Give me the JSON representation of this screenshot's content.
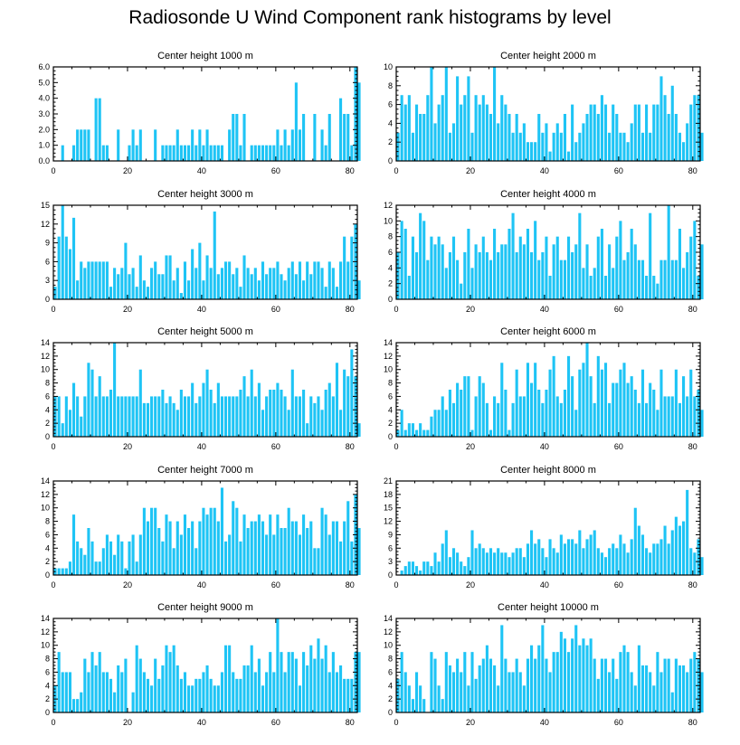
{
  "title": "Radiosonde U Wind Component rank histograms by level",
  "bar_color": "#1ec4f5",
  "chart_data": [
    {
      "type": "bar",
      "title": "Center height 1000 m",
      "xlim": [
        0,
        82
      ],
      "ylim": [
        0,
        6
      ],
      "yticks": [
        "0.0",
        "1.0",
        "2.0",
        "3.0",
        "4.0",
        "5.0",
        "6.0"
      ],
      "xticks": [
        "0",
        "20",
        "40",
        "60",
        "80"
      ],
      "values": [
        0,
        0,
        1,
        0,
        0,
        1,
        2,
        2,
        2,
        2,
        0,
        4,
        4,
        1,
        1,
        0,
        0,
        2,
        0,
        0,
        1,
        2,
        1,
        2,
        0,
        0,
        0,
        2,
        0,
        1,
        1,
        1,
        1,
        2,
        1,
        1,
        1,
        2,
        1,
        2,
        1,
        2,
        1,
        1,
        1,
        1,
        0,
        2,
        3,
        3,
        1,
        3,
        0,
        1,
        1,
        1,
        1,
        1,
        1,
        1,
        2,
        1,
        2,
        1,
        2,
        5,
        2,
        3,
        0,
        0,
        3,
        0,
        2,
        1,
        3,
        0,
        0,
        4,
        3,
        3,
        1,
        6,
        5
      ]
    },
    {
      "type": "bar",
      "title": "Center height 2000 m",
      "xlim": [
        0,
        82
      ],
      "ylim": [
        0,
        10
      ],
      "yticks": [
        "0",
        "2",
        "4",
        "6",
        "8",
        "10"
      ],
      "xticks": [
        "0",
        "20",
        "40",
        "60",
        "80"
      ],
      "values": [
        3,
        7,
        6,
        7,
        3,
        6,
        5,
        5,
        7,
        10,
        4,
        6,
        7,
        10,
        3,
        4,
        9,
        6,
        7,
        9,
        3,
        7,
        6,
        7,
        6,
        5,
        10,
        4,
        7,
        6,
        5,
        3,
        5,
        3,
        4,
        2,
        2,
        2,
        5,
        3,
        4,
        1,
        3,
        4,
        3,
        5,
        1,
        6,
        2,
        3,
        4,
        5,
        6,
        6,
        5,
        7,
        6,
        3,
        6,
        5,
        3,
        3,
        2,
        4,
        6,
        6,
        3,
        6,
        3,
        6,
        6,
        9,
        7,
        5,
        8,
        5,
        3,
        2,
        4,
        6,
        7,
        7,
        3
      ]
    },
    {
      "type": "bar",
      "title": "Center height 3000 m",
      "xlim": [
        0,
        82
      ],
      "ylim": [
        0,
        15
      ],
      "yticks": [
        "0",
        "3",
        "6",
        "9",
        "12",
        "15"
      ],
      "xticks": [
        "0",
        "20",
        "40",
        "60",
        "80"
      ],
      "values": [
        2,
        10,
        15,
        10,
        8,
        13,
        3,
        6,
        5,
        6,
        6,
        6,
        6,
        6,
        6,
        2,
        5,
        4,
        5,
        9,
        4,
        5,
        2,
        7,
        3,
        2,
        5,
        6,
        4,
        4,
        7,
        7,
        3,
        5,
        1,
        6,
        3,
        8,
        5,
        9,
        3,
        7,
        5,
        14,
        4,
        5,
        6,
        6,
        4,
        5,
        2,
        7,
        5,
        4,
        5,
        3,
        6,
        4,
        5,
        5,
        6,
        4,
        3,
        5,
        6,
        4,
        6,
        3,
        6,
        4,
        6,
        6,
        5,
        2,
        6,
        5,
        2,
        6,
        10,
        6,
        10,
        12,
        3
      ]
    },
    {
      "type": "bar",
      "title": "Center height 4000 m",
      "xlim": [
        0,
        82
      ],
      "ylim": [
        0,
        12
      ],
      "yticks": [
        "0",
        "2",
        "4",
        "6",
        "8",
        "10",
        "12"
      ],
      "xticks": [
        "0",
        "20",
        "40",
        "60",
        "80"
      ],
      "values": [
        6,
        10,
        9,
        3,
        8,
        6,
        11,
        10,
        5,
        8,
        7,
        8,
        7,
        4,
        6,
        8,
        5,
        2,
        6,
        9,
        4,
        7,
        6,
        8,
        6,
        5,
        9,
        6,
        7,
        7,
        9,
        11,
        6,
        8,
        7,
        9,
        6,
        10,
        5,
        6,
        8,
        3,
        7,
        8,
        5,
        5,
        8,
        6,
        7,
        11,
        4,
        7,
        3,
        4,
        8,
        9,
        3,
        7,
        4,
        8,
        10,
        5,
        6,
        9,
        7,
        5,
        5,
        3,
        11,
        3,
        2,
        5,
        5,
        12,
        5,
        5,
        9,
        4,
        6,
        8,
        10,
        3,
        7
      ]
    },
    {
      "type": "bar",
      "title": "Center height 5000 m",
      "xlim": [
        0,
        82
      ],
      "ylim": [
        0,
        14
      ],
      "yticks": [
        "0",
        "2",
        "4",
        "6",
        "8",
        "10",
        "12",
        "14"
      ],
      "xticks": [
        "0",
        "20",
        "40",
        "60",
        "80"
      ],
      "values": [
        6,
        6,
        2,
        6,
        4,
        8,
        6,
        3,
        6,
        11,
        10,
        6,
        9,
        6,
        6,
        7,
        14,
        6,
        6,
        6,
        6,
        6,
        6,
        10,
        5,
        5,
        6,
        6,
        6,
        7,
        5,
        6,
        5,
        4,
        7,
        6,
        6,
        8,
        5,
        6,
        8,
        10,
        7,
        5,
        8,
        6,
        6,
        6,
        6,
        6,
        7,
        9,
        6,
        10,
        6,
        8,
        4,
        6,
        7,
        7,
        8,
        7,
        6,
        4,
        10,
        6,
        6,
        7,
        2,
        6,
        5,
        6,
        4,
        7,
        8,
        6,
        11,
        4,
        10,
        9,
        13,
        9,
        2
      ]
    },
    {
      "type": "bar",
      "title": "Center height 6000 m",
      "xlim": [
        0,
        82
      ],
      "ylim": [
        0,
        14
      ],
      "yticks": [
        "0",
        "2",
        "4",
        "6",
        "8",
        "10",
        "12",
        "14"
      ],
      "xticks": [
        "0",
        "20",
        "40",
        "60",
        "80"
      ],
      "values": [
        1,
        4,
        1,
        2,
        2,
        1,
        2,
        1,
        1,
        3,
        4,
        4,
        6,
        4,
        7,
        5,
        8,
        7,
        9,
        9,
        1,
        6,
        9,
        8,
        5,
        1,
        6,
        5,
        11,
        7,
        1,
        5,
        10,
        6,
        6,
        11,
        8,
        11,
        7,
        5,
        7,
        10,
        12,
        6,
        5,
        7,
        12,
        9,
        4,
        10,
        11,
        14,
        9,
        5,
        12,
        10,
        11,
        5,
        8,
        8,
        10,
        11,
        8,
        9,
        7,
        5,
        10,
        5,
        8,
        7,
        4,
        10,
        6,
        6,
        6,
        10,
        5,
        9,
        6,
        10,
        6,
        7,
        4
      ]
    },
    {
      "type": "bar",
      "title": "Center height 7000 m",
      "xlim": [
        0,
        82
      ],
      "ylim": [
        0,
        14
      ],
      "yticks": [
        "0",
        "2",
        "4",
        "6",
        "8",
        "10",
        "12",
        "14"
      ],
      "xticks": [
        "0",
        "20",
        "40",
        "60",
        "80"
      ],
      "values": [
        1,
        1,
        1,
        1,
        2,
        9,
        5,
        4,
        3,
        7,
        5,
        2,
        2,
        4,
        6,
        5,
        3,
        6,
        5,
        1,
        5,
        6,
        2,
        6,
        10,
        8,
        10,
        10,
        7,
        5,
        9,
        8,
        4,
        8,
        6,
        9,
        7,
        8,
        4,
        8,
        10,
        9,
        10,
        10,
        8,
        13,
        5,
        6,
        11,
        10,
        5,
        9,
        7,
        8,
        8,
        9,
        8,
        6,
        9,
        6,
        9,
        7,
        7,
        10,
        8,
        8,
        6,
        9,
        7,
        8,
        4,
        4,
        10,
        9,
        6,
        8,
        8,
        5,
        8,
        11,
        5,
        12,
        7
      ]
    },
    {
      "type": "bar",
      "title": "Center height 8000 m",
      "xlim": [
        0,
        82
      ],
      "ylim": [
        0,
        21
      ],
      "yticks": [
        "0",
        "3",
        "6",
        "9",
        "12",
        "15",
        "18",
        "21"
      ],
      "xticks": [
        "0",
        "20",
        "40",
        "60",
        "80"
      ],
      "values": [
        0,
        1,
        2,
        3,
        3,
        2,
        1,
        3,
        3,
        2,
        5,
        3,
        7,
        10,
        4,
        6,
        5,
        3,
        2,
        4,
        10,
        6,
        7,
        6,
        5,
        6,
        5,
        6,
        5,
        5,
        4,
        5,
        6,
        6,
        4,
        7,
        10,
        7,
        8,
        6,
        4,
        8,
        6,
        5,
        9,
        7,
        8,
        8,
        7,
        10,
        6,
        8,
        9,
        10,
        6,
        5,
        4,
        6,
        7,
        6,
        9,
        7,
        5,
        8,
        15,
        11,
        9,
        6,
        5,
        7,
        7,
        8,
        11,
        7,
        10,
        13,
        11,
        12,
        19,
        6,
        5,
        8,
        4
      ]
    },
    {
      "type": "bar",
      "title": "Center height 9000 m",
      "xlim": [
        0,
        82
      ],
      "ylim": [
        0,
        14
      ],
      "yticks": [
        "0",
        "2",
        "4",
        "6",
        "8",
        "10",
        "12",
        "14"
      ],
      "xticks": [
        "0",
        "20",
        "40",
        "60",
        "80"
      ],
      "values": [
        4,
        9,
        6,
        6,
        6,
        2,
        2,
        3,
        8,
        6,
        9,
        7,
        9,
        6,
        6,
        5,
        3,
        7,
        6,
        8,
        0,
        3,
        10,
        8,
        6,
        5,
        4,
        8,
        5,
        7,
        10,
        9,
        10,
        7,
        5,
        6,
        4,
        4,
        5,
        5,
        6,
        7,
        5,
        4,
        4,
        6,
        10,
        10,
        6,
        5,
        5,
        7,
        7,
        10,
        6,
        8,
        4,
        6,
        9,
        6,
        14,
        9,
        6,
        9,
        9,
        8,
        4,
        9,
        7,
        10,
        8,
        11,
        8,
        10,
        6,
        9,
        6,
        7,
        5,
        5,
        5,
        9,
        9
      ]
    },
    {
      "type": "bar",
      "title": "Center height 10000 m",
      "xlim": [
        0,
        82
      ],
      "ylim": [
        0,
        14
      ],
      "yticks": [
        "0",
        "2",
        "4",
        "6",
        "8",
        "10",
        "12",
        "14"
      ],
      "xticks": [
        "0",
        "20",
        "40",
        "60",
        "80"
      ],
      "values": [
        5,
        9,
        6,
        4,
        2,
        6,
        4,
        2,
        0,
        9,
        8,
        4,
        2,
        9,
        7,
        6,
        8,
        6,
        9,
        4,
        9,
        5,
        7,
        8,
        10,
        8,
        7,
        4,
        13,
        8,
        6,
        6,
        8,
        6,
        4,
        8,
        10,
        8,
        10,
        13,
        8,
        6,
        9,
        9,
        12,
        11,
        9,
        11,
        13,
        10,
        11,
        10,
        11,
        8,
        5,
        8,
        8,
        6,
        8,
        5,
        9,
        10,
        9,
        6,
        4,
        10,
        7,
        7,
        6,
        4,
        9,
        6,
        8,
        8,
        3,
        8,
        7,
        7,
        6,
        8,
        9,
        8,
        6
      ]
    }
  ]
}
